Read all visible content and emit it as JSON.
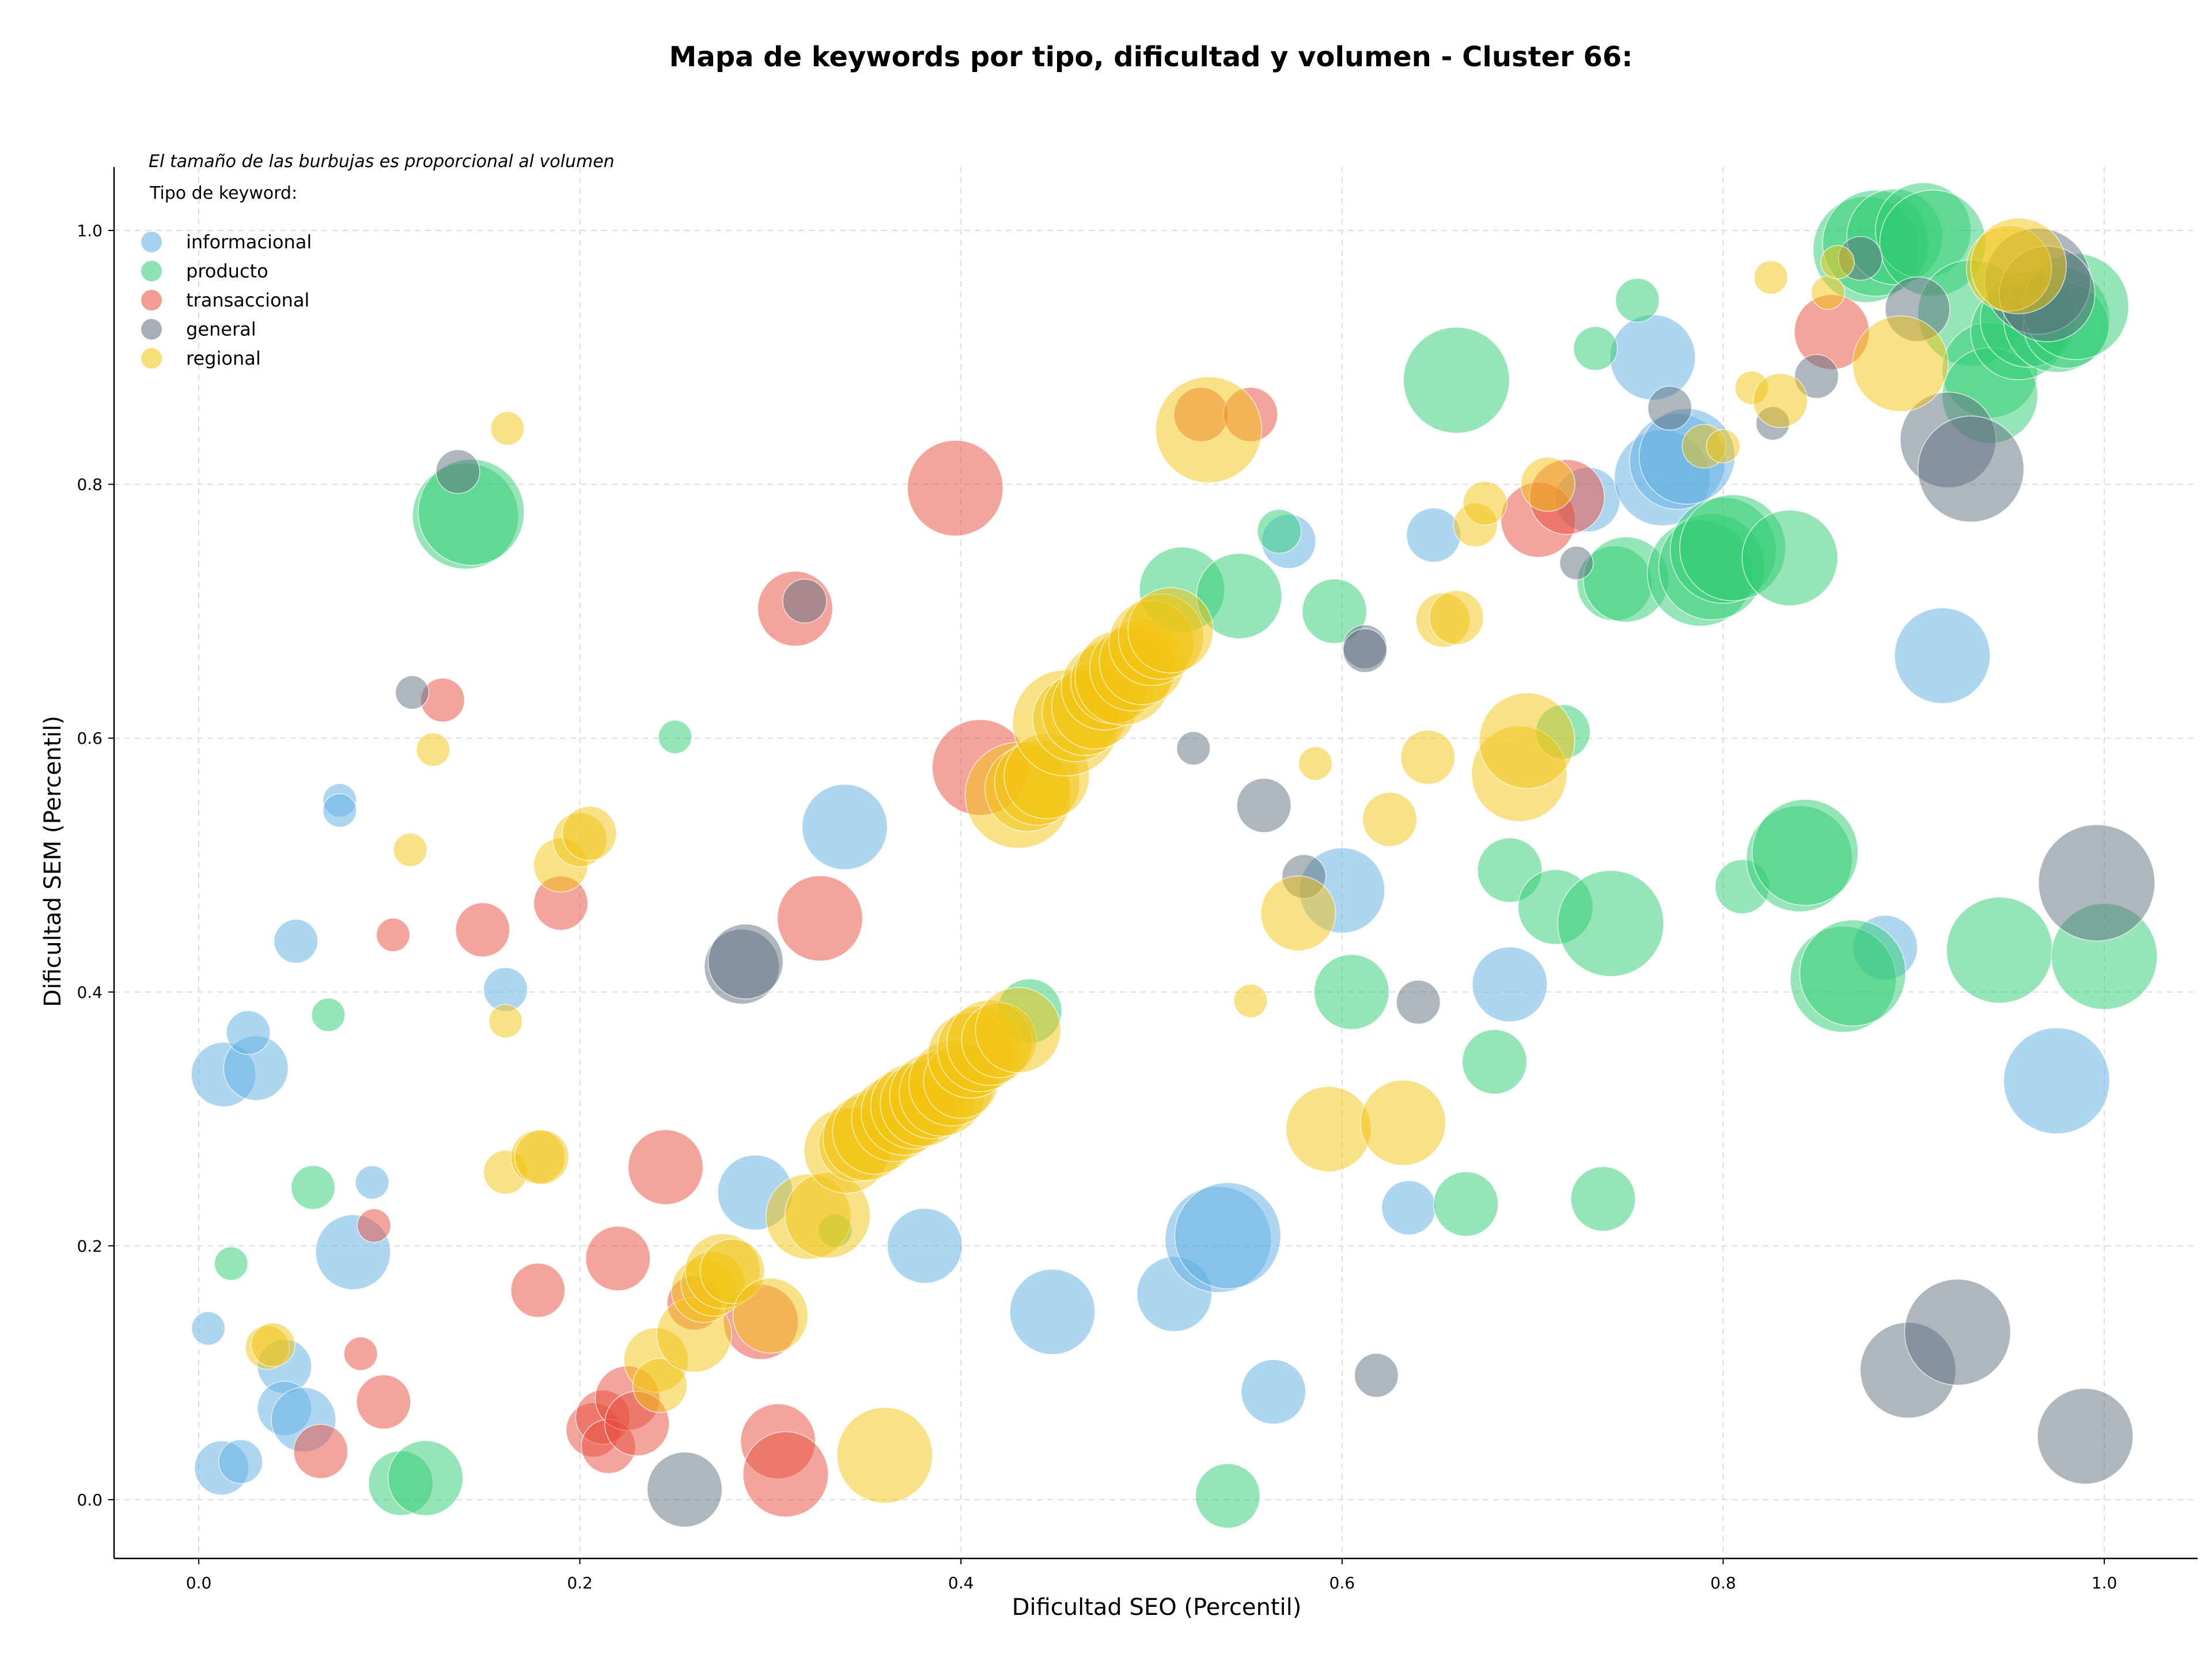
{
  "chart_data": {
    "type": "scatter",
    "title": "Mapa de keywords por tipo, dificultad y volumen - Cluster 66:",
    "xlabel": "Dificultad SEO (Percentil)",
    "ylabel": "Dificultad SEM (Percentil)",
    "note": "El tamaño de las burbujas es proporcional al volumen",
    "legend_title": "Tipo de keyword:",
    "legend_position": "top-left",
    "grid": true,
    "xlim": [
      -0.045,
      1.05
    ],
    "ylim": [
      -0.045,
      1.05
    ],
    "xticks": [
      "0.0",
      "0.2",
      "0.4",
      "0.6",
      "0.8",
      "1.0"
    ],
    "yticks": [
      "0.0",
      "0.2",
      "0.4",
      "0.6",
      "0.8",
      "1.0"
    ],
    "series": [
      {
        "name": "informacional",
        "color": "#5DADE2",
        "points": [
          [
            0.005,
            0.135,
            1
          ],
          [
            0.012,
            0.025,
            3
          ],
          [
            0.022,
            0.03,
            2
          ],
          [
            0.013,
            0.335,
            4
          ],
          [
            0.03,
            0.34,
            4
          ],
          [
            0.026,
            0.368,
            2
          ],
          [
            0.045,
            0.105,
            3
          ],
          [
            0.045,
            0.072,
            3
          ],
          [
            0.055,
            0.063,
            4
          ],
          [
            0.051,
            0.44,
            2
          ],
          [
            0.074,
            0.551,
            1
          ],
          [
            0.074,
            0.543,
            1
          ],
          [
            0.081,
            0.195,
            5
          ],
          [
            0.091,
            0.25,
            1
          ],
          [
            0.161,
            0.402,
            2
          ],
          [
            0.292,
            0.242,
            5
          ],
          [
            0.339,
            0.53,
            6
          ],
          [
            0.381,
            0.2,
            5
          ],
          [
            0.448,
            0.148,
            6
          ],
          [
            0.512,
            0.162,
            5
          ],
          [
            0.535,
            0.205,
            8
          ],
          [
            0.54,
            0.208,
            8
          ],
          [
            0.564,
            0.085,
            4
          ],
          [
            0.572,
            0.755,
            3
          ],
          [
            0.6,
            0.48,
            6
          ],
          [
            0.635,
            0.23,
            3
          ],
          [
            0.648,
            0.76,
            3
          ],
          [
            0.688,
            0.406,
            5
          ],
          [
            0.729,
            0.788,
            4
          ],
          [
            0.763,
            0.9,
            6
          ],
          [
            0.768,
            0.805,
            7
          ],
          [
            0.776,
            0.818,
            7
          ],
          [
            0.781,
            0.822,
            7
          ],
          [
            0.885,
            0.435,
            4
          ],
          [
            0.915,
            0.665,
            7
          ],
          [
            0.975,
            0.33,
            8
          ]
        ]
      },
      {
        "name": "producto",
        "color": "#2ECC71",
        "points": [
          [
            0.017,
            0.186,
            1
          ],
          [
            0.06,
            0.246,
            2
          ],
          [
            0.068,
            0.382,
            1
          ],
          [
            0.106,
            0.013,
            4
          ],
          [
            0.119,
            0.017,
            5
          ],
          [
            0.14,
            0.775,
            8
          ],
          [
            0.143,
            0.778,
            8
          ],
          [
            0.25,
            0.601,
            1
          ],
          [
            0.334,
            0.212,
            1
          ],
          [
            0.436,
            0.385,
            4
          ],
          [
            0.516,
            0.717,
            6
          ],
          [
            0.546,
            0.712,
            6
          ],
          [
            0.54,
            0.003,
            4
          ],
          [
            0.567,
            0.763,
            2
          ],
          [
            0.596,
            0.7,
            4
          ],
          [
            0.605,
            0.4,
            5
          ],
          [
            0.66,
            0.882,
            8
          ],
          [
            0.665,
            0.233,
            4
          ],
          [
            0.68,
            0.345,
            4
          ],
          [
            0.688,
            0.496,
            4
          ],
          [
            0.712,
            0.467,
            5
          ],
          [
            0.716,
            0.605,
            3
          ],
          [
            0.733,
            0.907,
            2
          ],
          [
            0.737,
            0.237,
            4
          ],
          [
            0.741,
            0.454,
            8
          ],
          [
            0.743,
            0.722,
            5
          ],
          [
            0.749,
            0.725,
            6
          ],
          [
            0.755,
            0.945,
            2
          ],
          [
            0.788,
            0.73,
            8
          ],
          [
            0.794,
            0.735,
            8
          ],
          [
            0.8,
            0.748,
            8
          ],
          [
            0.805,
            0.75,
            8
          ],
          [
            0.81,
            0.483,
            3
          ],
          [
            0.835,
            0.742,
            7
          ],
          [
            0.84,
            0.505,
            8
          ],
          [
            0.843,
            0.51,
            8
          ],
          [
            0.863,
            0.41,
            8
          ],
          [
            0.868,
            0.415,
            8
          ],
          [
            0.875,
            0.985,
            8
          ],
          [
            0.88,
            0.99,
            8
          ],
          [
            0.89,
            0.995,
            7
          ],
          [
            0.905,
            1.0,
            7
          ],
          [
            0.91,
            0.99,
            8
          ],
          [
            0.93,
            0.935,
            8
          ],
          [
            0.94,
            0.89,
            7
          ],
          [
            0.945,
            0.433,
            8
          ],
          [
            0.94,
            0.87,
            7
          ],
          [
            0.955,
            0.92,
            7
          ],
          [
            0.96,
            0.93,
            7
          ],
          [
            0.975,
            0.93,
            8
          ],
          [
            0.98,
            0.925,
            6
          ],
          [
            0.985,
            0.94,
            8
          ],
          [
            1.0,
            0.428,
            8
          ]
        ]
      },
      {
        "name": "transaccional",
        "color": "#E74C3C",
        "points": [
          [
            0.064,
            0.038,
            3
          ],
          [
            0.085,
            0.115,
            1
          ],
          [
            0.092,
            0.216,
            1
          ],
          [
            0.097,
            0.077,
            3
          ],
          [
            0.102,
            0.445,
            1
          ],
          [
            0.128,
            0.63,
            2
          ],
          [
            0.149,
            0.449,
            3
          ],
          [
            0.178,
            0.165,
            3
          ],
          [
            0.19,
            0.47,
            3
          ],
          [
            0.207,
            0.055,
            3
          ],
          [
            0.212,
            0.065,
            3
          ],
          [
            0.215,
            0.042,
            3
          ],
          [
            0.22,
            0.19,
            4
          ],
          [
            0.225,
            0.08,
            4
          ],
          [
            0.23,
            0.06,
            4
          ],
          [
            0.245,
            0.262,
            5
          ],
          [
            0.26,
            0.155,
            3
          ],
          [
            0.295,
            0.14,
            5
          ],
          [
            0.304,
            0.046,
            5
          ],
          [
            0.308,
            0.02,
            6
          ],
          [
            0.313,
            0.702,
            5
          ],
          [
            0.326,
            0.458,
            6
          ],
          [
            0.397,
            0.797,
            7
          ],
          [
            0.41,
            0.577,
            7
          ],
          [
            0.526,
            0.855,
            3
          ],
          [
            0.552,
            0.855,
            3
          ],
          [
            0.703,
            0.772,
            5
          ],
          [
            0.718,
            0.79,
            5
          ],
          [
            0.857,
            0.92,
            5
          ]
        ]
      },
      {
        "name": "general",
        "color": "#5D6D7E",
        "points": [
          [
            0.112,
            0.636,
            1
          ],
          [
            0.136,
            0.81,
            2
          ],
          [
            0.255,
            0.008,
            5
          ],
          [
            0.285,
            0.42,
            5
          ],
          [
            0.287,
            0.424,
            5
          ],
          [
            0.318,
            0.708,
            2
          ],
          [
            0.522,
            0.592,
            1
          ],
          [
            0.559,
            0.547,
            3
          ],
          [
            0.58,
            0.491,
            2
          ],
          [
            0.612,
            0.672,
            2
          ],
          [
            0.612,
            0.669,
            2
          ],
          [
            0.618,
            0.098,
            2
          ],
          [
            0.64,
            0.392,
            2
          ],
          [
            0.723,
            0.738,
            1
          ],
          [
            0.772,
            0.86,
            2
          ],
          [
            0.826,
            0.848,
            1
          ],
          [
            0.849,
            0.885,
            2
          ],
          [
            0.872,
            0.978,
            2
          ],
          [
            0.897,
            0.102,
            7
          ],
          [
            0.902,
            0.938,
            4
          ],
          [
            0.918,
            0.835,
            7
          ],
          [
            0.923,
            0.132,
            8
          ],
          [
            0.93,
            0.812,
            8
          ],
          [
            0.965,
            0.96,
            8
          ],
          [
            0.97,
            0.95,
            7
          ],
          [
            0.99,
            0.05,
            7
          ],
          [
            0.996,
            0.486,
            9
          ]
        ]
      },
      {
        "name": "regional",
        "color": "#F1C40F",
        "points": [
          [
            0.036,
            0.12,
            2
          ],
          [
            0.039,
            0.122,
            2
          ],
          [
            0.111,
            0.512,
            1
          ],
          [
            0.123,
            0.591,
            1
          ],
          [
            0.161,
            0.258,
            2
          ],
          [
            0.161,
            0.377,
            1
          ],
          [
            0.162,
            0.844,
            1
          ],
          [
            0.178,
            0.27,
            3
          ],
          [
            0.18,
            0.27,
            3
          ],
          [
            0.19,
            0.5,
            3
          ],
          [
            0.2,
            0.52,
            3
          ],
          [
            0.205,
            0.525,
            3
          ],
          [
            0.24,
            0.11,
            4
          ],
          [
            0.242,
            0.09,
            3
          ],
          [
            0.26,
            0.13,
            5
          ],
          [
            0.265,
            0.165,
            4
          ],
          [
            0.27,
            0.17,
            4
          ],
          [
            0.275,
            0.18,
            5
          ],
          [
            0.28,
            0.18,
            4
          ],
          [
            0.3,
            0.145,
            5
          ],
          [
            0.32,
            0.223,
            6
          ],
          [
            0.33,
            0.224,
            6
          ],
          [
            0.34,
            0.275,
            6
          ],
          [
            0.345,
            0.28,
            5
          ],
          [
            0.35,
            0.285,
            6
          ],
          [
            0.355,
            0.29,
            6
          ],
          [
            0.36,
            0.035,
            7
          ],
          [
            0.365,
            0.3,
            6
          ],
          [
            0.37,
            0.305,
            6
          ],
          [
            0.375,
            0.31,
            6
          ],
          [
            0.38,
            0.312,
            6
          ],
          [
            0.385,
            0.318,
            6
          ],
          [
            0.39,
            0.32,
            6
          ],
          [
            0.395,
            0.328,
            6
          ],
          [
            0.4,
            0.33,
            5
          ],
          [
            0.405,
            0.35,
            6
          ],
          [
            0.41,
            0.355,
            6
          ],
          [
            0.415,
            0.36,
            6
          ],
          [
            0.42,
            0.362,
            5
          ],
          [
            0.43,
            0.37,
            6
          ],
          [
            0.43,
            0.555,
            8
          ],
          [
            0.435,
            0.56,
            6
          ],
          [
            0.44,
            0.565,
            6
          ],
          [
            0.445,
            0.57,
            6
          ],
          [
            0.455,
            0.612,
            8
          ],
          [
            0.46,
            0.615,
            6
          ],
          [
            0.465,
            0.62,
            6
          ],
          [
            0.47,
            0.625,
            6
          ],
          [
            0.475,
            0.64,
            6
          ],
          [
            0.48,
            0.645,
            6
          ],
          [
            0.485,
            0.648,
            7
          ],
          [
            0.49,
            0.655,
            6
          ],
          [
            0.495,
            0.66,
            6
          ],
          [
            0.5,
            0.675,
            6
          ],
          [
            0.505,
            0.68,
            6
          ],
          [
            0.51,
            0.685,
            6
          ],
          [
            0.53,
            0.843,
            8
          ],
          [
            0.552,
            0.393,
            1
          ],
          [
            0.577,
            0.462,
            5
          ],
          [
            0.586,
            0.58,
            1
          ],
          [
            0.593,
            0.292,
            6
          ],
          [
            0.625,
            0.536,
            3
          ],
          [
            0.632,
            0.297,
            6
          ],
          [
            0.645,
            0.585,
            3
          ],
          [
            0.653,
            0.693,
            3
          ],
          [
            0.66,
            0.695,
            3
          ],
          [
            0.67,
            0.768,
            2
          ],
          [
            0.675,
            0.785,
            2
          ],
          [
            0.693,
            0.572,
            7
          ],
          [
            0.697,
            0.598,
            7
          ],
          [
            0.708,
            0.8,
            3
          ],
          [
            0.79,
            0.83,
            2
          ],
          [
            0.8,
            0.83,
            1
          ],
          [
            0.815,
            0.876,
            1
          ],
          [
            0.83,
            0.866,
            3
          ],
          [
            0.825,
            0.963,
            1
          ],
          [
            0.855,
            0.951,
            1
          ],
          [
            0.86,
            0.975,
            1
          ],
          [
            0.893,
            0.895,
            7
          ],
          [
            0.95,
            0.97,
            6
          ],
          [
            0.955,
            0.972,
            7
          ]
        ]
      }
    ]
  }
}
